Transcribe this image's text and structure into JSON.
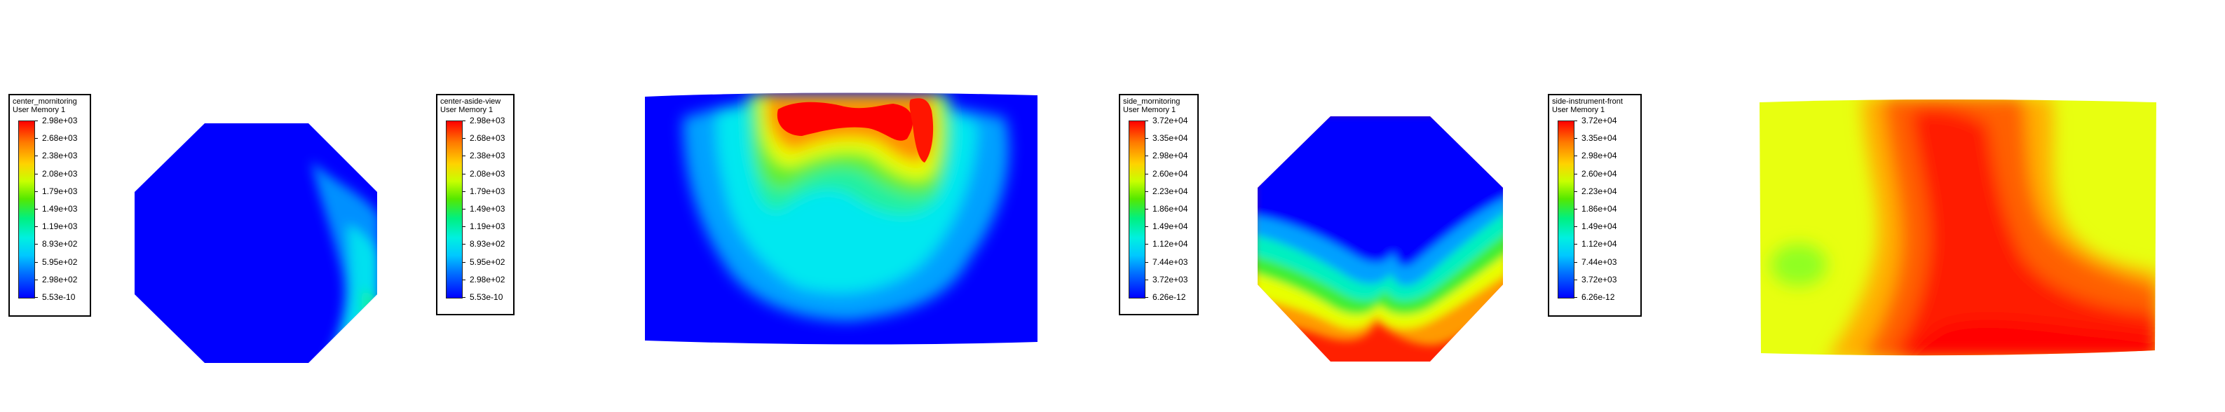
{
  "legends": [
    {
      "title": "center_mornitoring",
      "subtitle": "User Memory 1",
      "labels": [
        "2.98e+03",
        "2.68e+03",
        "2.38e+03",
        "2.08e+03",
        "1.79e+03",
        "1.49e+03",
        "1.19e+03",
        "8.93e+02",
        "5.95e+02",
        "2.98e+02",
        "5.53e-10"
      ]
    },
    {
      "title": "center-aside-view",
      "subtitle": "User Memory 1",
      "labels": [
        "2.98e+03",
        "2.68e+03",
        "2.38e+03",
        "2.08e+03",
        "1.79e+03",
        "1.49e+03",
        "1.19e+03",
        "8.93e+02",
        "5.95e+02",
        "2.98e+02",
        "5.53e-10"
      ]
    },
    {
      "title": "side_mornitoring",
      "subtitle": "User Memory 1",
      "labels": [
        "3.72e+04",
        "3.35e+04",
        "2.98e+04",
        "2.60e+04",
        "2.23e+04",
        "1.86e+04",
        "1.49e+04",
        "1.12e+04",
        "7.44e+03",
        "3.72e+03",
        "6.26e-12"
      ]
    },
    {
      "title": "side-instrument-front",
      "subtitle": "User Memory 1",
      "labels": [
        "3.72e+04",
        "3.35e+04",
        "2.98e+04",
        "2.60e+04",
        "2.23e+04",
        "1.86e+04",
        "1.49e+04",
        "1.12e+04",
        "7.44e+03",
        "3.72e+03",
        "6.26e-12"
      ]
    }
  ],
  "colors": {
    "blue": "#0000ff",
    "light_blue": "#00b4ff",
    "cyan": "#00f0e0",
    "green": "#00e05a",
    "yellow_green": "#c8ff00",
    "yellow": "#ffff00",
    "orange": "#ff8a00",
    "red": "#ff0000"
  }
}
